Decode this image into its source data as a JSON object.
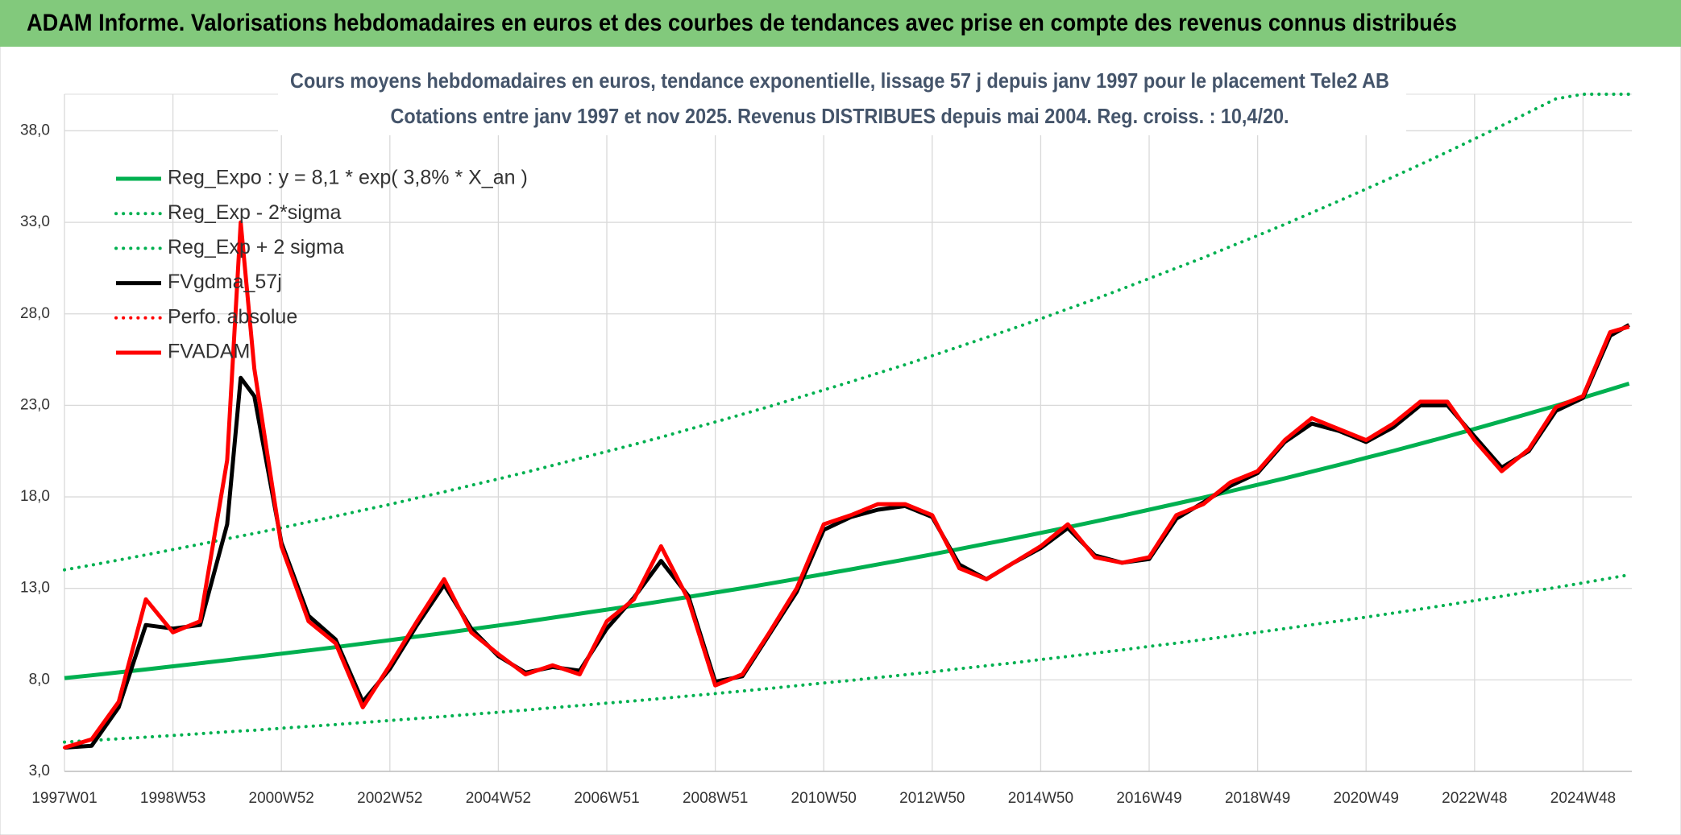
{
  "header": {
    "title": "ADAM Informe. Valorisations hebdomadaires en euros et des courbes de tendances avec prise en compte des revenus connus distribués"
  },
  "chart_data": {
    "type": "line",
    "title": "Cours moyens hebdomadaires en euros, tendance exponentielle, lissage 57 j depuis janv 1997 pour le placement Tele2 AB",
    "subtitle": "Cotations entre janv 1997 et nov 2025. Revenus DISTRIBUES depuis mai 2004. Reg. croiss. : 10,4/20.",
    "x": [
      1997.0,
      1997.5,
      1998.0,
      1998.5,
      1999.0,
      1999.5,
      2000.0,
      2000.25,
      2000.5,
      2001.0,
      2001.5,
      2002.0,
      2002.5,
      2003.0,
      2003.5,
      2004.0,
      2004.5,
      2005.0,
      2005.5,
      2006.0,
      2006.5,
      2007.0,
      2007.5,
      2008.0,
      2008.5,
      2009.0,
      2009.5,
      2010.0,
      2010.5,
      2011.0,
      2011.5,
      2012.0,
      2012.5,
      2013.0,
      2013.5,
      2014.0,
      2014.5,
      2015.0,
      2015.5,
      2016.0,
      2016.5,
      2017.0,
      2017.5,
      2018.0,
      2018.5,
      2019.0,
      2019.5,
      2020.0,
      2020.5,
      2021.0,
      2021.5,
      2022.0,
      2022.5,
      2023.0,
      2023.5,
      2024.0,
      2024.5,
      2025.0,
      2025.5,
      2025.85
    ],
    "xlim": [
      1997.0,
      2025.9
    ],
    "xticks": [
      {
        "value": 1997.0,
        "label": "1997W01"
      },
      {
        "value": 1999.0,
        "label": "1998W53"
      },
      {
        "value": 2001.0,
        "label": "2000W52"
      },
      {
        "value": 2003.0,
        "label": "2002W52"
      },
      {
        "value": 2005.0,
        "label": "2004W52"
      },
      {
        "value": 2007.0,
        "label": "2006W51"
      },
      {
        "value": 2009.0,
        "label": "2008W51"
      },
      {
        "value": 2011.0,
        "label": "2010W50"
      },
      {
        "value": 2013.0,
        "label": "2012W50"
      },
      {
        "value": 2015.0,
        "label": "2014W50"
      },
      {
        "value": 2017.0,
        "label": "2016W49"
      },
      {
        "value": 2019.0,
        "label": "2018W49"
      },
      {
        "value": 2021.0,
        "label": "2020W49"
      },
      {
        "value": 2023.0,
        "label": "2022W48"
      },
      {
        "value": 2025.0,
        "label": "2024W48"
      }
    ],
    "ylim": [
      3,
      40
    ],
    "yticks": [
      {
        "value": 3,
        "label": "3,0"
      },
      {
        "value": 8,
        "label": "8,0"
      },
      {
        "value": 13,
        "label": "13,0"
      },
      {
        "value": 18,
        "label": "18,0"
      },
      {
        "value": 23,
        "label": "23,0"
      },
      {
        "value": 28,
        "label": "28,0"
      },
      {
        "value": 33,
        "label": "33,0"
      },
      {
        "value": 38,
        "label": "38,0"
      }
    ],
    "grid": true,
    "series": [
      {
        "name": "Reg_Expo : y = 8,1 * exp( 3,8% *  X_an )",
        "color": "#00b050",
        "style": "solid",
        "values": [
          8.1,
          8.25,
          8.41,
          8.57,
          8.74,
          8.91,
          9.08,
          9.17,
          9.25,
          9.43,
          9.61,
          9.79,
          9.98,
          10.17,
          10.37,
          10.56,
          10.77,
          10.97,
          11.18,
          11.4,
          11.62,
          11.84,
          12.06,
          12.29,
          12.53,
          12.77,
          13.01,
          13.26,
          13.52,
          13.78,
          14.04,
          14.31,
          14.58,
          14.86,
          15.15,
          15.44,
          15.73,
          16.03,
          16.34,
          16.65,
          16.97,
          17.3,
          17.63,
          17.96,
          18.31,
          18.66,
          19.01,
          19.38,
          19.75,
          20.13,
          20.51,
          20.9,
          21.3,
          21.71,
          22.13,
          22.55,
          22.98,
          23.42,
          23.87,
          24.19
        ]
      },
      {
        "name": "Reg_Exp - 2*sigma",
        "color": "#00b050",
        "style": "dotted",
        "values": [
          4.6,
          4.69,
          4.78,
          4.87,
          4.96,
          5.06,
          5.16,
          5.21,
          5.25,
          5.36,
          5.46,
          5.56,
          5.67,
          5.78,
          5.89,
          6.0,
          6.12,
          6.23,
          6.35,
          6.48,
          6.6,
          6.73,
          6.85,
          6.98,
          7.12,
          7.25,
          7.39,
          7.53,
          7.68,
          7.83,
          7.97,
          8.13,
          8.28,
          8.44,
          8.61,
          8.77,
          8.93,
          9.11,
          9.28,
          9.46,
          9.64,
          9.83,
          10.01,
          10.2,
          10.4,
          10.6,
          10.8,
          11.01,
          11.22,
          11.43,
          11.65,
          11.87,
          12.1,
          12.33,
          12.57,
          12.81,
          13.05,
          13.3,
          13.56,
          13.74
        ]
      },
      {
        "name": "Reg_Exp + 2 sigma",
        "color": "#00b050",
        "style": "dotted",
        "values": [
          14.01,
          14.27,
          14.55,
          14.83,
          15.12,
          15.41,
          15.71,
          15.86,
          16.0,
          16.31,
          16.63,
          16.94,
          17.27,
          17.59,
          17.94,
          18.27,
          18.63,
          18.98,
          19.34,
          19.72,
          20.1,
          20.48,
          20.86,
          21.26,
          21.68,
          22.09,
          22.51,
          22.94,
          23.39,
          23.84,
          24.29,
          24.76,
          25.22,
          25.71,
          26.21,
          26.71,
          27.21,
          27.73,
          28.27,
          28.8,
          29.36,
          29.93,
          30.5,
          31.07,
          31.68,
          32.28,
          32.89,
          33.53,
          34.17,
          34.82,
          35.48,
          36.16,
          36.85,
          37.56,
          38.28,
          39.01,
          39.75,
          40,
          40,
          40
        ]
      },
      {
        "name": "FVgdma_57j",
        "color": "#000000",
        "style": "solid",
        "values": [
          4.3,
          4.4,
          6.5,
          11.0,
          10.8,
          11.0,
          16.5,
          24.5,
          23.5,
          15.5,
          11.5,
          10.2,
          6.8,
          8.6,
          11.0,
          13.2,
          10.8,
          9.3,
          8.4,
          8.7,
          8.5,
          10.8,
          12.5,
          14.5,
          12.6,
          7.9,
          8.2,
          10.5,
          12.8,
          16.2,
          16.9,
          17.3,
          17.5,
          16.9,
          14.3,
          13.5,
          14.4,
          15.2,
          16.3,
          14.8,
          14.4,
          14.6,
          16.8,
          17.7,
          18.6,
          19.3,
          21.0,
          22.0,
          21.6,
          21.0,
          21.8,
          23.0,
          23.0,
          21.3,
          19.6,
          20.5,
          22.7,
          23.4,
          26.8,
          27.4
        ]
      },
      {
        "name": "Perfo. absolue",
        "color": "#ff0000",
        "style": "dotted",
        "values": [
          4.3,
          4.75,
          6.8,
          12.4,
          10.6,
          11.2,
          20,
          33,
          25,
          15.3,
          11.2,
          10,
          6.5,
          8.8,
          11.2,
          13.5,
          10.6,
          9.4,
          8.3,
          8.8,
          8.3,
          11.2,
          12.4,
          15.3,
          12.4,
          7.7,
          8.3,
          10.6,
          13,
          16.5,
          17,
          17.6,
          17.6,
          17,
          14.1,
          13.5,
          14.4,
          15.3,
          16.5,
          14.7,
          14.4,
          14.7,
          17,
          17.6,
          18.8,
          19.4,
          21.1,
          22.3,
          21.7,
          21.1,
          22,
          23.2,
          23.2,
          21.1,
          19.4,
          20.6,
          22.9,
          23.5,
          27,
          27.3
        ]
      },
      {
        "name": "FVADAM",
        "color": "#ff0000",
        "style": "solid",
        "values": [
          4.3,
          4.75,
          6.8,
          12.4,
          10.6,
          11.2,
          20,
          33,
          25,
          15.3,
          11.2,
          10,
          6.5,
          8.8,
          11.2,
          13.5,
          10.6,
          9.4,
          8.3,
          8.8,
          8.3,
          11.2,
          12.4,
          15.3,
          12.4,
          7.7,
          8.3,
          10.6,
          13,
          16.5,
          17,
          17.6,
          17.6,
          17,
          14.1,
          13.5,
          14.4,
          15.3,
          16.5,
          14.7,
          14.4,
          14.7,
          17,
          17.6,
          18.8,
          19.4,
          21.1,
          22.3,
          21.7,
          21.1,
          22,
          23.2,
          23.2,
          21.1,
          19.4,
          20.6,
          22.9,
          23.5,
          27,
          27.3
        ]
      }
    ]
  }
}
